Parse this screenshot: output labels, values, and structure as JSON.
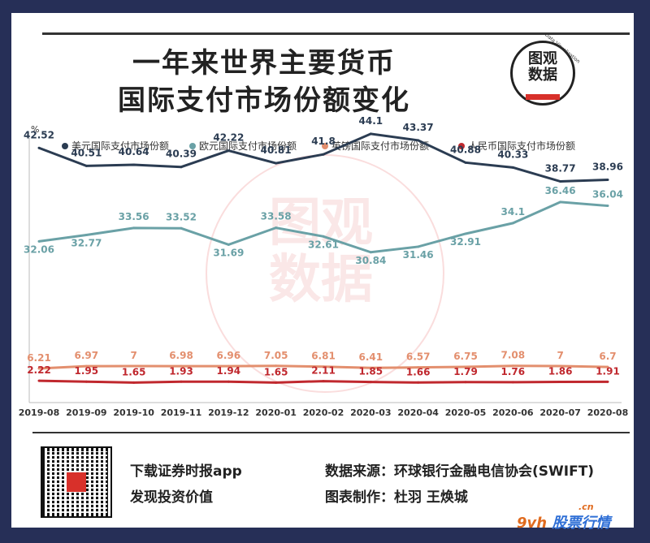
{
  "title": {
    "line1": "一年来世界主要货币",
    "line2": "国际支付市场份额变化"
  },
  "logo": {
    "line1": "图观",
    "line2": "数据",
    "arc_text": "Data Visualization"
  },
  "watermark": {
    "text": "图观数据"
  },
  "footer": {
    "left_line1": "下载证券时报app",
    "left_line2": "发现投资价值",
    "source": "数据来源：环球银行金融电信协会(SWIFT)",
    "author": "图表制作：杜羽 王焕城"
  },
  "site_badge": {
    "brand": "9vh",
    "name": "股票行情",
    "domain": ".cn"
  },
  "colors": {
    "usd": "#2b3c52",
    "eur": "#6aa1a6",
    "gbp": "#e38f6e",
    "cny": "#c0282e"
  },
  "chart_data": {
    "type": "line",
    "ylabel": "%",
    "ylim": [
      0,
      50
    ],
    "grid": false,
    "legend_position": "top",
    "categories": [
      "2019-08",
      "2019-09",
      "2019-10",
      "2019-11",
      "2019-12",
      "2020-01",
      "2020-02",
      "2020-03",
      "2020-04",
      "2020-05",
      "2020-06",
      "2020-07",
      "2020-08"
    ],
    "series": [
      {
        "name": "美元国际支付市场份额",
        "color": "#2b3c52",
        "values": [
          42.52,
          40.51,
          40.64,
          40.39,
          42.22,
          40.81,
          41.8,
          44.1,
          43.37,
          40.88,
          40.33,
          38.77,
          38.96
        ]
      },
      {
        "name": "欧元国际支付市场份额",
        "color": "#6aa1a6",
        "values": [
          32.06,
          32.77,
          33.56,
          33.52,
          31.69,
          33.58,
          32.61,
          30.84,
          31.46,
          32.91,
          34.1,
          36.46,
          36.04
        ]
      },
      {
        "name": "英镑国际支付市场份额",
        "color": "#e38f6e",
        "values": [
          6.21,
          6.97,
          7,
          6.98,
          6.96,
          7.05,
          6.81,
          6.41,
          6.57,
          6.75,
          7.08,
          7,
          6.7
        ]
      },
      {
        "name": "人民币国际支付市场份额",
        "color": "#c0282e",
        "values": [
          2.22,
          1.95,
          1.65,
          1.93,
          1.94,
          1.65,
          2.11,
          1.85,
          1.66,
          1.79,
          1.76,
          1.86,
          1.91
        ]
      }
    ]
  }
}
